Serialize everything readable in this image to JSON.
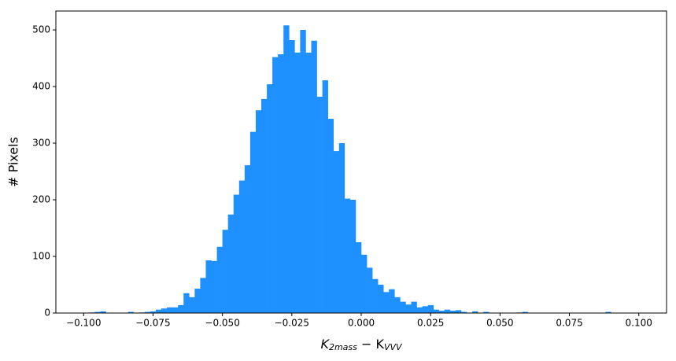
{
  "chart_data": {
    "type": "histogram",
    "bins": [
      -0.1,
      -0.098,
      -0.096,
      -0.094,
      -0.092,
      -0.09,
      -0.088,
      -0.086,
      -0.084,
      -0.082,
      -0.08,
      -0.078,
      -0.076,
      -0.074,
      -0.072,
      -0.07,
      -0.068,
      -0.066,
      -0.064,
      -0.062,
      -0.06,
      -0.058,
      -0.056,
      -0.054,
      -0.052,
      -0.05,
      -0.048,
      -0.046,
      -0.044,
      -0.042,
      -0.04,
      -0.038,
      -0.036,
      -0.034,
      -0.032,
      -0.03,
      -0.028,
      -0.026,
      -0.024,
      -0.022,
      -0.02,
      -0.018,
      -0.016,
      -0.014,
      -0.012,
      -0.01,
      -0.008,
      -0.006,
      -0.004,
      -0.002,
      0,
      0.002,
      0.004,
      0.006,
      0.008,
      0.01,
      0.012,
      0.014,
      0.016,
      0.018,
      0.02,
      0.022,
      0.024,
      0.026,
      0.028,
      0.03,
      0.032,
      0.034,
      0.036,
      0.038,
      0.04,
      0.042,
      0.044,
      0.046,
      0.048,
      0.05,
      0.052,
      0.054,
      0.056,
      0.058,
      0.06,
      0.062,
      0.064,
      0.066,
      0.068,
      0.07,
      0.072,
      0.074,
      0.076,
      0.078,
      0.08,
      0.082,
      0.084,
      0.086,
      0.088,
      0.09,
      0.092,
      0.094,
      0.096,
      0.098,
      0.1
    ],
    "counts": [
      0,
      1,
      2,
      3,
      0,
      0,
      0,
      0,
      2,
      0,
      1,
      2,
      3,
      6,
      8,
      10,
      10,
      14,
      35,
      28,
      43,
      62,
      93,
      92,
      117,
      147,
      174,
      209,
      234,
      261,
      320,
      358,
      378,
      404,
      452,
      457,
      508,
      482,
      460,
      500,
      460,
      481,
      382,
      411,
      343,
      286,
      300,
      202,
      200,
      125,
      103,
      80,
      60,
      50,
      37,
      42,
      28,
      20,
      15,
      20,
      10,
      12,
      14,
      6,
      4,
      6,
      4,
      5,
      2,
      0,
      3,
      0,
      2,
      0,
      0,
      0,
      0,
      0,
      1,
      2,
      0,
      0,
      0,
      0,
      0,
      0,
      0,
      0,
      0,
      0,
      0,
      0,
      0,
      0,
      2,
      0,
      0,
      0,
      0,
      0,
      0
    ],
    "color": "#1e90ff",
    "xlabel": [
      "K",
      "2mass",
      " − K",
      "VVV"
    ],
    "ylabel": "# Pixels",
    "xlim": [
      -0.11,
      0.11
    ],
    "ylim": [
      0,
      533.4
    ],
    "xticks": [
      {
        "value": -0.1,
        "label": "−0.100"
      },
      {
        "value": -0.075,
        "label": "−0.075"
      },
      {
        "value": -0.05,
        "label": "−0.050"
      },
      {
        "value": -0.025,
        "label": "−0.025"
      },
      {
        "value": 0,
        "label": "0.000"
      },
      {
        "value": 0.025,
        "label": "0.025"
      },
      {
        "value": 0.05,
        "label": "0.050"
      },
      {
        "value": 0.075,
        "label": "0.075"
      },
      {
        "value": 0.1,
        "label": "0.100"
      }
    ],
    "yticks": [
      0,
      100,
      200,
      300,
      400,
      500
    ]
  }
}
